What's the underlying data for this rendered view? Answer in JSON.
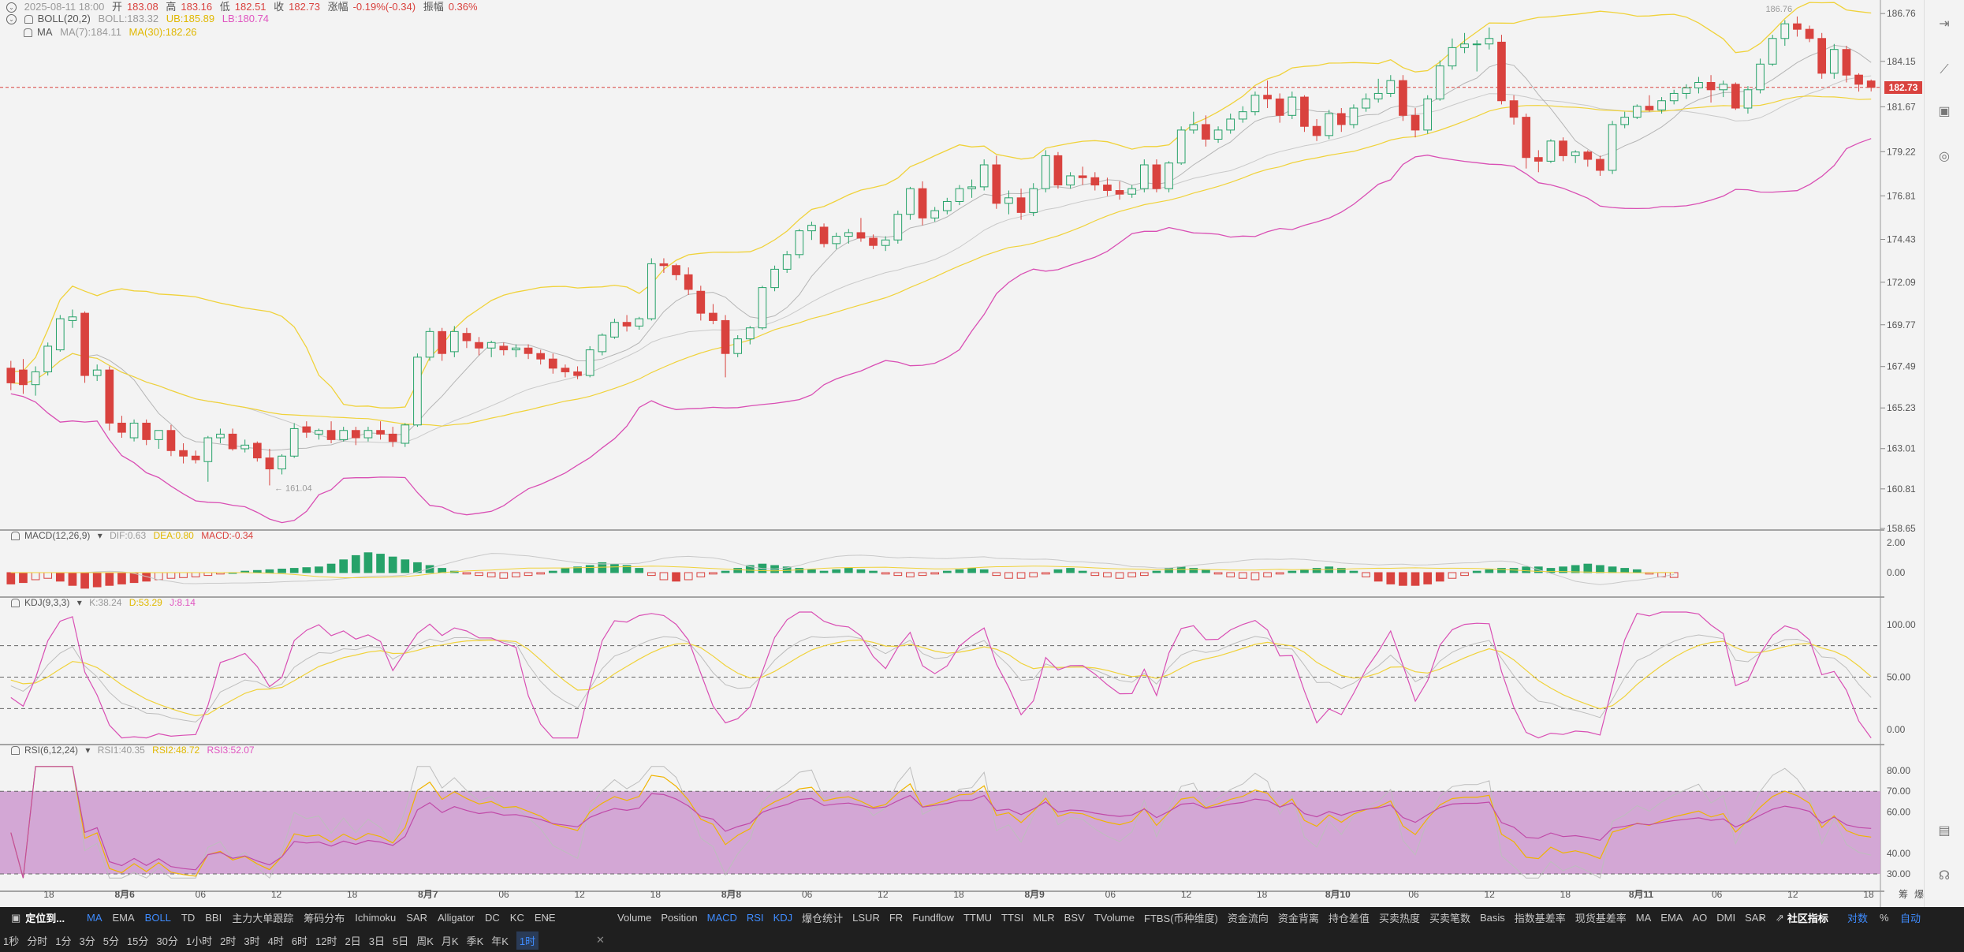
{
  "header": {
    "datetime": "2025-08-11 18:00",
    "open_label": "开",
    "open": "183.08",
    "high_label": "高",
    "high": "183.16",
    "low_label": "低",
    "low": "182.51",
    "close_label": "收",
    "close": "182.73",
    "change_label": "涨幅",
    "change": "-0.19%(-0.34)",
    "amp_label": "振幅",
    "amp": "0.36%"
  },
  "boll_legend": {
    "name": "BOLL(20,2)",
    "mid": "BOLL:183.32",
    "ub": "UB:185.89",
    "lb": "LB:180.74"
  },
  "ma_legend": {
    "name": "MA",
    "ma7": "MA(7):184.11",
    "ma30": "MA(30):182.26"
  },
  "macd_legend": {
    "name": "MACD(12,26,9)",
    "dif": "DIF:0.63",
    "dea": "DEA:0.80",
    "macd": "MACD:-0.34"
  },
  "kdj_legend": {
    "name": "KDJ(9,3,3)",
    "k": "K:38.24",
    "d": "D:53.29",
    "j": "J:8.14"
  },
  "rsi_legend": {
    "name": "RSI(6,12,24)",
    "r1": "RSI1:40.35",
    "r2": "RSI2:48.72",
    "r3": "RSI3:52.07"
  },
  "price_axis": [
    "186.76",
    "184.15",
    "181.67",
    "179.22",
    "176.81",
    "174.43",
    "172.09",
    "169.77",
    "167.49",
    "165.23",
    "163.01",
    "160.81",
    "158.65"
  ],
  "current_price": "182.73",
  "high_marker": "186.76",
  "low_marker": "161.04",
  "macd_axis": [
    "2.00",
    "0.00"
  ],
  "kdj_axis": [
    "100.00",
    "50.00",
    "0.00"
  ],
  "rsi_axis": [
    "80.00",
    "70.00",
    "60.00",
    "40.00",
    "30.00"
  ],
  "time_axis": [
    "18",
    "8月6",
    "06",
    "12",
    "18",
    "8月7",
    "06",
    "12",
    "18",
    "8月8",
    "06",
    "12",
    "18",
    "8月9",
    "06",
    "12",
    "18",
    "8月10",
    "06",
    "12",
    "18",
    "8月11",
    "06",
    "12",
    "18"
  ],
  "time_axis_corner": [
    "筹",
    "爆"
  ],
  "indicator_bar": {
    "locate": "定位到...",
    "main": [
      "MA",
      "EMA",
      "BOLL",
      "TD",
      "BBI",
      "主力大单跟踪",
      "筹码分布",
      "Ichimoku",
      "SAR",
      "Alligator",
      "DC",
      "KC",
      "ENE"
    ],
    "sub": [
      "Volume",
      "Position",
      "MACD",
      "RSI",
      "KDJ",
      "爆仓统计",
      "LSUR",
      "FR",
      "Fundflow",
      "TTMU",
      "TTSI",
      "MLR",
      "BSV",
      "TVolume",
      "FTBS(币种维度)",
      "资金流向",
      "资金背离",
      "持仓差值",
      "买卖热度",
      "买卖笔数",
      "Basis",
      "指数基差率",
      "现货基差率",
      "MA",
      "EMA",
      "AO",
      "DMI",
      "SAR"
    ],
    "community": "社区指标",
    "log": "对数",
    "percent": "%",
    "auto": "自动"
  },
  "timeframe_bar": [
    "1秒",
    "分时",
    "1分",
    "3分",
    "5分",
    "15分",
    "30分",
    "1小时",
    "2时",
    "3时",
    "4时",
    "6时",
    "12时",
    "2日",
    "3日",
    "5日",
    "周K",
    "月K",
    "季K",
    "年K",
    "1时"
  ],
  "colors": {
    "up": "#26a269",
    "down": "#d9423e",
    "boll_band": "#f0d23a",
    "boll_lb": "#d94fb4",
    "ma7": "#b5b5b5",
    "ma30": "#f0d23a",
    "rsi_fill": "#cf9fd2",
    "accent": "#3f8cff"
  },
  "chart_data": {
    "type": "candlestick",
    "ylim": [
      158.65,
      187.5
    ],
    "ohlc": [
      [
        167.4,
        167.8,
        166.2,
        166.6
      ],
      [
        167.3,
        167.9,
        166.0,
        166.5
      ],
      [
        166.5,
        167.5,
        165.9,
        167.2
      ],
      [
        167.2,
        168.8,
        167.0,
        168.6
      ],
      [
        168.4,
        170.3,
        168.3,
        170.1
      ],
      [
        170.0,
        170.6,
        169.6,
        170.2
      ],
      [
        170.4,
        170.5,
        166.6,
        167.0
      ],
      [
        167.0,
        167.6,
        166.7,
        167.3
      ],
      [
        167.3,
        167.5,
        164.0,
        164.4
      ],
      [
        164.4,
        164.8,
        163.6,
        163.9
      ],
      [
        163.6,
        164.6,
        163.4,
        164.4
      ],
      [
        164.4,
        164.6,
        163.2,
        163.5
      ],
      [
        163.5,
        164.0,
        163.0,
        164.0
      ],
      [
        164.0,
        164.3,
        162.6,
        162.9
      ],
      [
        162.9,
        163.3,
        162.2,
        162.6
      ],
      [
        162.6,
        162.9,
        162.2,
        162.4
      ],
      [
        162.3,
        163.7,
        161.2,
        163.6
      ],
      [
        163.6,
        164.1,
        163.3,
        163.8
      ],
      [
        163.8,
        164.1,
        162.9,
        163.0
      ],
      [
        163.0,
        163.5,
        162.8,
        163.2
      ],
      [
        163.3,
        163.4,
        162.3,
        162.5
      ],
      [
        162.5,
        163.0,
        161.0,
        161.9
      ],
      [
        161.9,
        162.7,
        161.6,
        162.6
      ],
      [
        162.6,
        164.4,
        162.5,
        164.1
      ],
      [
        164.2,
        164.5,
        163.6,
        163.9
      ],
      [
        163.8,
        164.1,
        163.5,
        164.0
      ],
      [
        164.0,
        164.5,
        163.3,
        163.5
      ],
      [
        163.5,
        164.2,
        163.4,
        164.0
      ],
      [
        164.0,
        164.2,
        163.2,
        163.6
      ],
      [
        163.6,
        164.2,
        163.4,
        164.0
      ],
      [
        164.0,
        164.5,
        163.5,
        163.8
      ],
      [
        163.8,
        164.2,
        163.1,
        163.4
      ],
      [
        163.3,
        164.4,
        163.1,
        164.3
      ],
      [
        164.3,
        168.2,
        164.2,
        168.0
      ],
      [
        168.0,
        169.6,
        167.8,
        169.4
      ],
      [
        169.4,
        169.6,
        167.8,
        168.2
      ],
      [
        168.3,
        169.7,
        168.0,
        169.4
      ],
      [
        169.3,
        169.6,
        168.5,
        168.9
      ],
      [
        168.8,
        169.1,
        168.1,
        168.5
      ],
      [
        168.5,
        168.9,
        168.0,
        168.8
      ],
      [
        168.6,
        168.8,
        168.1,
        168.4
      ],
      [
        168.4,
        168.7,
        168.0,
        168.5
      ],
      [
        168.5,
        168.7,
        167.9,
        168.2
      ],
      [
        168.2,
        168.4,
        167.6,
        167.9
      ],
      [
        167.9,
        168.2,
        167.1,
        167.4
      ],
      [
        167.4,
        167.6,
        166.9,
        167.2
      ],
      [
        167.2,
        167.5,
        166.8,
        167.0
      ],
      [
        167.0,
        168.6,
        166.9,
        168.4
      ],
      [
        168.3,
        169.3,
        168.1,
        169.2
      ],
      [
        169.1,
        170.1,
        169.0,
        169.9
      ],
      [
        169.9,
        170.3,
        169.4,
        169.7
      ],
      [
        169.7,
        170.2,
        169.5,
        170.1
      ],
      [
        170.1,
        173.4,
        170.0,
        173.1
      ],
      [
        173.1,
        173.4,
        172.6,
        173.0
      ],
      [
        173.0,
        173.1,
        172.2,
        172.5
      ],
      [
        172.5,
        172.9,
        171.4,
        171.7
      ],
      [
        171.6,
        171.9,
        170.0,
        170.4
      ],
      [
        170.4,
        170.9,
        169.8,
        170.0
      ],
      [
        170.0,
        170.3,
        166.9,
        168.2
      ],
      [
        168.2,
        169.2,
        168.0,
        169.0
      ],
      [
        169.0,
        169.7,
        168.7,
        169.6
      ],
      [
        169.6,
        171.9,
        169.5,
        171.8
      ],
      [
        171.8,
        173.0,
        171.6,
        172.8
      ],
      [
        172.8,
        173.8,
        172.6,
        173.6
      ],
      [
        173.6,
        175.0,
        173.4,
        174.9
      ],
      [
        174.9,
        175.4,
        174.4,
        175.2
      ],
      [
        175.1,
        175.3,
        174.0,
        174.2
      ],
      [
        174.2,
        174.8,
        173.9,
        174.6
      ],
      [
        174.6,
        175.0,
        174.2,
        174.8
      ],
      [
        174.8,
        175.6,
        174.3,
        174.5
      ],
      [
        174.5,
        174.7,
        173.9,
        174.1
      ],
      [
        174.1,
        174.6,
        173.8,
        174.4
      ],
      [
        174.4,
        176.0,
        174.2,
        175.8
      ],
      [
        175.8,
        177.3,
        175.5,
        177.2
      ],
      [
        177.2,
        177.6,
        175.2,
        175.6
      ],
      [
        175.6,
        176.2,
        175.4,
        176.0
      ],
      [
        176.0,
        176.7,
        175.8,
        176.5
      ],
      [
        176.5,
        177.4,
        176.3,
        177.2
      ],
      [
        177.2,
        177.7,
        176.7,
        177.3
      ],
      [
        177.3,
        178.8,
        177.1,
        178.5
      ],
      [
        178.5,
        179.0,
        176.1,
        176.4
      ],
      [
        176.4,
        177.1,
        175.8,
        176.7
      ],
      [
        176.7,
        177.2,
        175.5,
        175.9
      ],
      [
        175.9,
        177.5,
        175.7,
        177.2
      ],
      [
        177.2,
        179.3,
        177.0,
        179.0
      ],
      [
        179.0,
        179.2,
        177.2,
        177.4
      ],
      [
        177.4,
        178.1,
        177.2,
        177.9
      ],
      [
        177.9,
        178.4,
        177.4,
        177.8
      ],
      [
        177.8,
        178.1,
        177.1,
        177.4
      ],
      [
        177.4,
        177.8,
        176.8,
        177.1
      ],
      [
        177.1,
        177.6,
        176.6,
        176.9
      ],
      [
        176.9,
        177.4,
        176.7,
        177.2
      ],
      [
        177.2,
        178.8,
        177.0,
        178.5
      ],
      [
        178.5,
        178.8,
        177.0,
        177.2
      ],
      [
        177.2,
        178.7,
        177.0,
        178.6
      ],
      [
        178.6,
        180.6,
        178.5,
        180.4
      ],
      [
        180.4,
        181.4,
        180.2,
        180.7
      ],
      [
        180.7,
        181.2,
        179.5,
        179.9
      ],
      [
        179.9,
        180.6,
        179.7,
        180.4
      ],
      [
        180.4,
        181.3,
        180.2,
        181.0
      ],
      [
        181.0,
        181.7,
        180.8,
        181.4
      ],
      [
        181.4,
        182.5,
        181.2,
        182.3
      ],
      [
        182.3,
        183.1,
        181.6,
        182.1
      ],
      [
        182.1,
        182.4,
        180.8,
        181.2
      ],
      [
        181.2,
        182.5,
        181.0,
        182.2
      ],
      [
        182.2,
        182.3,
        180.3,
        180.6
      ],
      [
        180.6,
        181.0,
        179.8,
        180.1
      ],
      [
        180.1,
        181.5,
        179.9,
        181.3
      ],
      [
        181.3,
        181.6,
        180.3,
        180.7
      ],
      [
        180.7,
        181.8,
        180.5,
        181.6
      ],
      [
        181.6,
        182.4,
        181.4,
        182.1
      ],
      [
        182.1,
        183.2,
        181.9,
        182.4
      ],
      [
        182.4,
        183.4,
        182.2,
        183.1
      ],
      [
        183.1,
        183.4,
        180.9,
        181.2
      ],
      [
        181.2,
        181.6,
        180.0,
        180.4
      ],
      [
        180.4,
        182.3,
        180.2,
        182.1
      ],
      [
        182.1,
        184.2,
        182.0,
        183.9
      ],
      [
        183.9,
        185.4,
        183.7,
        184.9
      ],
      [
        184.9,
        185.7,
        184.6,
        185.1
      ],
      [
        185.1,
        185.3,
        183.6,
        185.1
      ],
      [
        185.1,
        186.0,
        184.8,
        185.4
      ],
      [
        185.2,
        185.6,
        181.8,
        182.0
      ],
      [
        182.0,
        182.3,
        180.7,
        181.1
      ],
      [
        181.1,
        181.3,
        178.3,
        178.9
      ],
      [
        178.9,
        179.3,
        178.1,
        178.7
      ],
      [
        178.7,
        179.9,
        178.6,
        179.8
      ],
      [
        179.8,
        180.0,
        178.7,
        179.0
      ],
      [
        179.0,
        179.3,
        178.6,
        179.2
      ],
      [
        179.2,
        179.3,
        178.4,
        178.8
      ],
      [
        178.8,
        179.0,
        177.9,
        178.2
      ],
      [
        178.2,
        180.9,
        178.0,
        180.7
      ],
      [
        180.7,
        181.4,
        180.5,
        181.1
      ],
      [
        181.1,
        181.8,
        181.0,
        181.7
      ],
      [
        181.7,
        182.3,
        181.4,
        181.5
      ],
      [
        181.5,
        182.2,
        181.3,
        182.0
      ],
      [
        182.0,
        182.6,
        181.8,
        182.4
      ],
      [
        182.4,
        182.9,
        182.1,
        182.7
      ],
      [
        182.7,
        183.3,
        182.4,
        183.0
      ],
      [
        183.0,
        183.4,
        181.9,
        182.6
      ],
      [
        182.6,
        183.1,
        182.2,
        182.9
      ],
      [
        182.9,
        183.0,
        181.5,
        181.6
      ],
      [
        181.6,
        182.8,
        181.3,
        182.6
      ],
      [
        182.6,
        184.3,
        182.4,
        184.0
      ],
      [
        184.0,
        185.6,
        183.9,
        185.4
      ],
      [
        185.4,
        186.4,
        185.0,
        186.2
      ],
      [
        186.2,
        186.6,
        185.5,
        185.9
      ],
      [
        185.9,
        186.1,
        185.2,
        185.4
      ],
      [
        185.4,
        185.7,
        183.2,
        183.5
      ],
      [
        183.5,
        185.1,
        183.2,
        184.8
      ],
      [
        184.8,
        185.0,
        183.0,
        183.4
      ],
      [
        183.4,
        183.5,
        182.5,
        182.9
      ],
      [
        183.08,
        183.16,
        182.51,
        182.73
      ]
    ],
    "macd_hist_scale": [
      -0.8,
      -0.7,
      -0.5,
      -0.4,
      -0.6,
      -0.9,
      -1.1,
      -1.0,
      -0.9,
      -0.8,
      -0.7,
      -0.6,
      -0.5,
      -0.4,
      -0.35,
      -0.3,
      -0.2,
      -0.1,
      0.0,
      0.1,
      0.15,
      0.2,
      0.25,
      0.3,
      0.35,
      0.4,
      0.6,
      0.9,
      1.2,
      1.4,
      1.3,
      1.1,
      0.9,
      0.7,
      0.5,
      0.3,
      0.1,
      -0.1,
      -0.2,
      -0.3,
      -0.4,
      -0.3,
      -0.2,
      -0.1,
      0.1,
      0.3,
      0.4,
      0.5,
      0.7,
      0.6,
      0.5,
      0.3,
      -0.2,
      -0.5,
      -0.6,
      -0.5,
      -0.3,
      -0.1,
      0.1,
      0.3,
      0.5,
      0.6,
      0.5,
      0.4,
      0.3,
      0.2,
      0.1,
      0.2,
      0.3,
      0.2,
      0.1,
      -0.1,
      -0.2,
      -0.3,
      -0.2,
      -0.1,
      0.1,
      0.2,
      0.3,
      0.2,
      -0.2,
      -0.4,
      -0.4,
      -0.3,
      -0.1,
      0.2,
      0.3,
      0.1,
      -0.2,
      -0.3,
      -0.4,
      -0.3,
      -0.2,
      0.1,
      0.3,
      0.4,
      0.3,
      0.2,
      -0.1,
      -0.3,
      -0.4,
      -0.5,
      -0.3,
      -0.1,
      0.1,
      0.2,
      0.3,
      0.4,
      0.3,
      0.1,
      -0.3,
      -0.6,
      -0.8,
      -0.9,
      -0.9,
      -0.8,
      -0.6,
      -0.4,
      -0.2,
      0.1,
      0.2,
      0.3,
      0.3,
      0.4,
      0.4,
      0.3,
      0.4,
      0.5,
      0.6,
      0.5,
      0.4,
      0.3,
      0.2,
      -0.1,
      -0.3,
      -0.34
    ]
  }
}
